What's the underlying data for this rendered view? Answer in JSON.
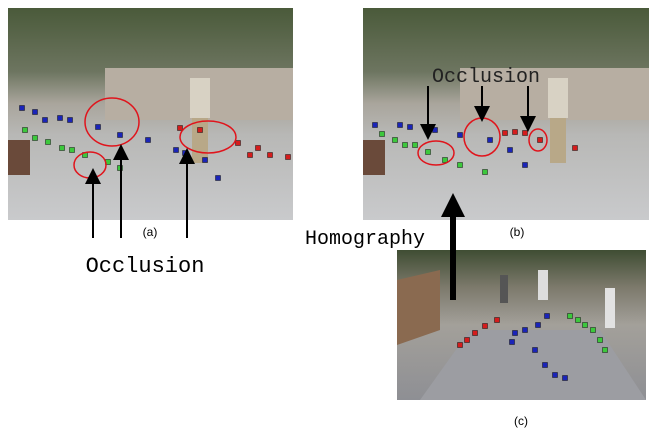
{
  "panels": [
    {
      "label": "(a)"
    },
    {
      "label": "(b)"
    },
    {
      "label": "(c)"
    }
  ],
  "annotations": {
    "occlusion_a": "Occlusion",
    "occlusion_b": "Occlusion",
    "homography": "Homography"
  }
}
